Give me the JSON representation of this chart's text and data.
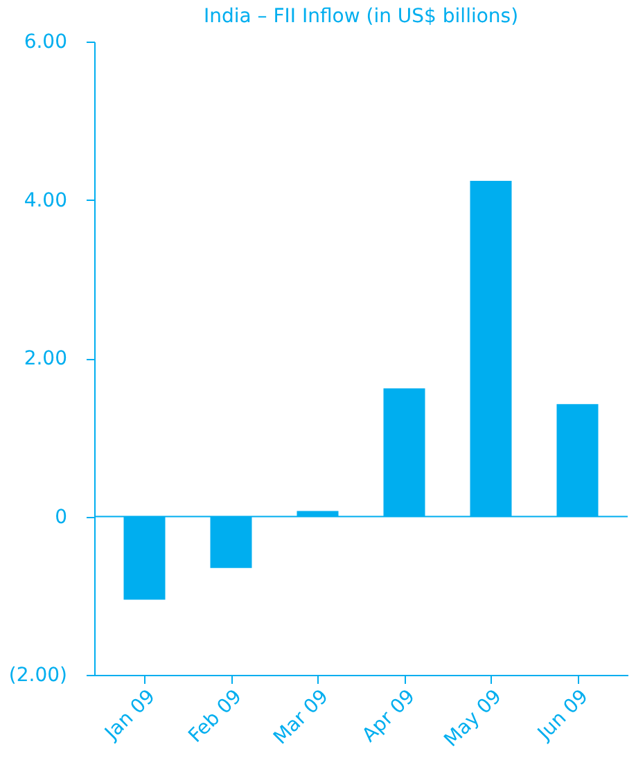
{
  "chart_data": {
    "type": "bar",
    "title": "India – FII Inflow (in US$ billions)",
    "categories": [
      "Jan 09",
      "Feb 09",
      "Mar 09",
      "Apr 09",
      "May 09",
      "Jun 09"
    ],
    "values": [
      -1.05,
      -0.65,
      0.07,
      1.62,
      4.24,
      1.42
    ],
    "color": "#00aeef",
    "ylim": [
      -2,
      6
    ],
    "yticks": [
      {
        "value": -2,
        "label": "(2.00)"
      },
      0,
      {
        "value": 2,
        "label": "2.00"
      },
      {
        "value": 4,
        "label": "4.00"
      },
      {
        "value": 6,
        "label": "6.00"
      }
    ],
    "grid": false,
    "ref_lines": [
      {
        "axis": "y",
        "value": 0
      }
    ]
  }
}
